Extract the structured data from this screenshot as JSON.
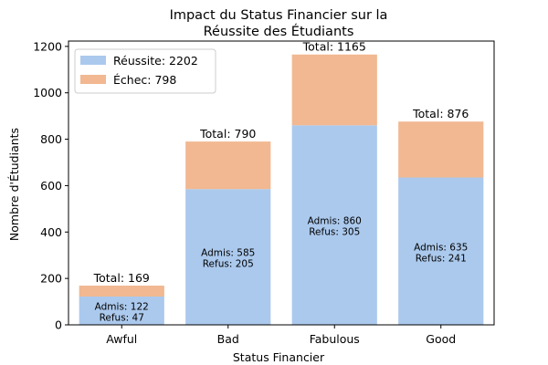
{
  "chart_data": {
    "type": "bar",
    "stacked": true,
    "title_lines": [
      "Impact du Status Financier sur la",
      "Réussite des Étudiants"
    ],
    "xlabel": "Status Financier",
    "ylabel": "Nombre d'Étudiants",
    "categories": [
      "Awful",
      "Bad",
      "Fabulous",
      "Good"
    ],
    "series": [
      {
        "name": "Réussite: 2202",
        "values": [
          122,
          585,
          860,
          635
        ],
        "color": "#abc9ed"
      },
      {
        "name": "Échec: 798",
        "values": [
          47,
          205,
          305,
          241
        ],
        "color": "#f1b891"
      }
    ],
    "totals": [
      "Total: 169",
      "Total: 790",
      "Total: 1165",
      "Total: 876"
    ],
    "admis_labels": [
      "Admis: 122",
      "Admis: 585",
      "Admis: 860",
      "Admis: 635"
    ],
    "refus_labels": [
      "Refus: 47",
      "Refus: 205",
      "Refus: 305",
      "Refus: 241"
    ],
    "yticks": [
      0,
      200,
      400,
      600,
      800,
      1000,
      1200
    ],
    "ylim": [
      0,
      1223
    ],
    "grid": false,
    "legend_position": "top-left"
  }
}
